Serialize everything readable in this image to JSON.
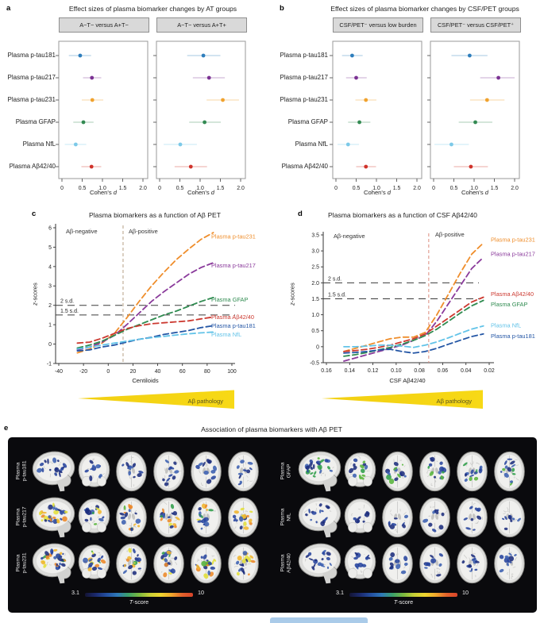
{
  "figure": {
    "panel_a": {
      "label": "a",
      "title": "Effect sizes of plasma biomarker changes by AT groups",
      "group_headers": [
        "A−T− versus A+T−",
        "A−T− versus A+T+"
      ],
      "xlabel_prefix": "Cohen's ",
      "xlabel_italic": "d"
    },
    "panel_b": {
      "label": "b",
      "title": "Effect sizes of plasma biomarker changes by CSF/PET groups",
      "group_headers": [
        "CSF/PET⁻ versus low burden",
        "CSF/PET⁻ versus CSF/PET⁺"
      ],
      "xlabel_prefix": "Cohen's ",
      "xlabel_italic": "d"
    },
    "panel_c": {
      "label": "c",
      "title": "Plasma biomarkers as a function of Aβ PET",
      "xlabel": "Centiloids",
      "ylabel_italic": "z",
      "ylabel_rest": "-scores",
      "footer": "Aβ pathology"
    },
    "panel_d": {
      "label": "d",
      "title": "Plasma biomarkers as a function of CSF Aβ42/40",
      "xlabel": "CSF Aβ42/40",
      "ylabel_italic": "z",
      "ylabel_rest": "-scores",
      "footer": "Aβ pathology"
    },
    "panel_e": {
      "label": "e",
      "title": "Association of plasma biomarkers with Aβ PET",
      "colorbar_min": "3.1",
      "colorbar_max": "10",
      "colorbar_italic": "T",
      "colorbar_rest": "-score"
    }
  },
  "biomarkers": [
    "Plasma p-tau181",
    "Plasma p-tau217",
    "Plasma p-tau231",
    "Plasma GFAP",
    "Plasma NfL",
    "Plasma Aβ42/40"
  ],
  "marker_colors": [
    "#2e7ebc",
    "#7b3293",
    "#f0a22e",
    "#338a52",
    "#7cc9e8",
    "#d0332b"
  ],
  "chart_data": [
    {
      "id": "a",
      "type": "scatter",
      "subtype": "forest-plot",
      "title": "Effect sizes of plasma biomarker changes by AT groups",
      "categories": [
        "Plasma p-tau181",
        "Plasma p-tau217",
        "Plasma p-tau231",
        "Plasma GFAP",
        "Plasma NfL",
        "Plasma Aβ42/40"
      ],
      "xlabel": "Cohen's d",
      "xlim": [
        0,
        2
      ],
      "xticks": [
        0,
        0.5,
        1.0,
        1.5,
        2.0
      ],
      "groups": [
        {
          "name": "A−T− versus A+T−",
          "d": [
            0.45,
            0.74,
            0.75,
            0.53,
            0.34,
            0.73
          ],
          "ci_low": [
            0.17,
            0.52,
            0.49,
            0.28,
            0.07,
            0.48
          ],
          "ci_high": [
            0.72,
            0.97,
            1.02,
            0.78,
            0.6,
            0.97
          ]
        },
        {
          "name": "A−T− versus A+T+",
          "d": [
            1.08,
            1.22,
            1.56,
            1.11,
            0.51,
            0.77
          ],
          "ci_low": [
            0.68,
            0.82,
            1.16,
            0.73,
            0.1,
            0.37
          ],
          "ci_high": [
            1.5,
            1.61,
            1.96,
            1.51,
            0.92,
            1.17
          ]
        }
      ]
    },
    {
      "id": "b",
      "type": "scatter",
      "subtype": "forest-plot",
      "title": "Effect sizes of plasma biomarker changes by CSF/PET groups",
      "categories": [
        "Plasma p-tau181",
        "Plasma p-tau217",
        "Plasma p-tau231",
        "Plasma GFAP",
        "Plasma NfL",
        "Plasma Aβ42/40"
      ],
      "xlabel": "Cohen's d",
      "xlim": [
        0,
        2
      ],
      "xticks": [
        0,
        0.5,
        1.0,
        1.5,
        2.0
      ],
      "groups": [
        {
          "name": "CSF/PET⁻ versus low burden",
          "d": [
            0.4,
            0.5,
            0.74,
            0.58,
            0.3,
            0.74
          ],
          "ci_low": [
            0.15,
            0.25,
            0.48,
            0.3,
            0.04,
            0.5
          ],
          "ci_high": [
            0.66,
            0.76,
            1.0,
            0.85,
            0.57,
            0.99
          ]
        },
        {
          "name": "CSF/PET⁻ versus CSF/PET⁺",
          "d": [
            0.89,
            1.6,
            1.32,
            1.03,
            0.44,
            0.92
          ],
          "ci_low": [
            0.44,
            1.15,
            0.9,
            0.62,
            0.02,
            0.5
          ],
          "ci_high": [
            1.33,
            2.0,
            1.75,
            1.45,
            0.87,
            1.34
          ]
        }
      ]
    },
    {
      "id": "c",
      "type": "line",
      "title": "Plasma biomarkers as a function of Aβ PET",
      "xlabel": "Centiloids",
      "ylabel": "z-scores",
      "xlim": [
        -45,
        103
      ],
      "ylim": [
        -1,
        6
      ],
      "xticks": [
        -40,
        -20,
        0,
        20,
        40,
        60,
        80,
        100
      ],
      "yticks": [
        -1,
        0,
        1,
        2,
        3,
        4,
        5,
        6
      ],
      "thresholds": [
        {
          "label": "2 s.d.",
          "y": 2
        },
        {
          "label": "1.5 s.d.",
          "y": 1.5
        }
      ],
      "divider_x": 12,
      "regions": [
        "Aβ-negative",
        "Aβ-positive"
      ],
      "footer": "Aβ pathology",
      "x": [
        -25,
        -15,
        -5,
        5,
        15,
        25,
        35,
        45,
        55,
        65,
        75,
        85
      ],
      "series": [
        {
          "name": "Plasma p-tau231",
          "color": "#ef8e2c",
          "label_z": 5.55,
          "y": [
            -0.45,
            -0.25,
            0.05,
            0.55,
            1.35,
            2.2,
            3.0,
            3.7,
            4.35,
            4.9,
            5.4,
            5.75
          ]
        },
        {
          "name": "Plasma p-tau217",
          "color": "#8a3a9b",
          "label_z": 4.05,
          "y": [
            -0.3,
            -0.15,
            0.1,
            0.45,
            1.0,
            1.6,
            2.2,
            2.7,
            3.15,
            3.6,
            3.95,
            4.2
          ]
        },
        {
          "name": "Plasma GFAP",
          "color": "#2f8b50",
          "label_z": 2.3,
          "y": [
            -0.2,
            -0.05,
            0.15,
            0.45,
            0.75,
            1.0,
            1.25,
            1.5,
            1.7,
            1.95,
            2.2,
            2.4
          ]
        },
        {
          "name": "Plasma Aβ42/40",
          "color": "#cc3930",
          "label_z": 1.4,
          "y": [
            0.05,
            0.1,
            0.3,
            0.55,
            0.8,
            0.95,
            1.05,
            1.1,
            1.15,
            1.2,
            1.3,
            1.4
          ]
        },
        {
          "name": "Plasma p-tau181",
          "color": "#2456a5",
          "label_z": 0.95,
          "y": [
            -0.35,
            -0.3,
            -0.15,
            -0.05,
            0.1,
            0.25,
            0.35,
            0.5,
            0.6,
            0.7,
            0.85,
            0.95
          ]
        },
        {
          "name": "Plasma NfL",
          "color": "#62c3e8",
          "label_z": 0.5,
          "y": [
            -0.25,
            -0.15,
            -0.05,
            0.05,
            0.15,
            0.25,
            0.33,
            0.4,
            0.47,
            0.53,
            0.58,
            0.62
          ]
        }
      ]
    },
    {
      "id": "d",
      "type": "line",
      "title": "Plasma biomarkers as a function of CSF Aβ42/40",
      "xlabel": "CSF Aβ42/40",
      "ylabel": "z-scores",
      "xlim": [
        0.16,
        0.02
      ],
      "x_reversed": true,
      "ylim": [
        -0.5,
        3.5
      ],
      "xticks": [
        0.16,
        0.14,
        0.12,
        0.1,
        0.08,
        0.06,
        0.04,
        0.02
      ],
      "yticks": [
        -0.5,
        0,
        0.5,
        1.0,
        1.5,
        2.0,
        2.5,
        3.0,
        3.5
      ],
      "thresholds": [
        {
          "label": "2 s.d.",
          "y": 2
        },
        {
          "label": "1.5 s.d.",
          "y": 1.5
        }
      ],
      "divider_x": 0.072,
      "regions": [
        "Aβ-negative",
        "Aβ-positive"
      ],
      "footer": "Aβ pathology",
      "x": [
        0.145,
        0.135,
        0.125,
        0.115,
        0.105,
        0.095,
        0.085,
        0.075,
        0.065,
        0.055,
        0.045,
        0.035,
        0.025
      ],
      "series": [
        {
          "name": "Plasma p-tau231",
          "color": "#ef8e2c",
          "label_z": 3.35,
          "y": [
            -0.15,
            -0.05,
            0.05,
            0.15,
            0.25,
            0.3,
            0.3,
            0.45,
            1.0,
            1.65,
            2.3,
            2.9,
            3.25
          ]
        },
        {
          "name": "Plasma p-tau217",
          "color": "#8a3a9b",
          "label_z": 2.9,
          "y": [
            -0.45,
            -0.35,
            -0.25,
            -0.15,
            -0.05,
            0.05,
            0.2,
            0.35,
            0.8,
            1.35,
            1.9,
            2.45,
            2.8
          ]
        },
        {
          "name": "Plasma Aβ42/40",
          "color": "#cc3930",
          "label_z": 1.65,
          "y": [
            -0.15,
            -0.12,
            -0.08,
            -0.02,
            0.05,
            0.15,
            0.25,
            0.4,
            0.65,
            0.9,
            1.15,
            1.4,
            1.55
          ]
        },
        {
          "name": "Plasma GFAP",
          "color": "#2f8b50",
          "label_z": 1.33,
          "y": [
            -0.3,
            -0.25,
            -0.18,
            -0.1,
            -0.02,
            0.08,
            0.2,
            0.35,
            0.55,
            0.8,
            1.05,
            1.28,
            1.45
          ]
        },
        {
          "name": "Plasma NfL",
          "color": "#62c3e8",
          "label_z": 0.67,
          "y": [
            0.0,
            0.0,
            0.02,
            0.05,
            0.05,
            0.02,
            -0.02,
            0.05,
            0.15,
            0.28,
            0.42,
            0.55,
            0.65
          ]
        },
        {
          "name": "Plasma p-tau181",
          "color": "#2456a5",
          "label_z": 0.33,
          "y": [
            -0.2,
            -0.18,
            -0.15,
            -0.1,
            -0.08,
            -0.15,
            -0.2,
            -0.15,
            -0.05,
            0.08,
            0.2,
            0.32,
            0.4
          ]
        }
      ]
    },
    {
      "id": "e",
      "type": "heatmap",
      "subtype": "brain-t-statistic-maps",
      "title": "Association of plasma biomarkers with Aβ PET",
      "slice_types": [
        "sagittal",
        "coronal",
        "axial",
        "axial",
        "axial",
        "axial"
      ],
      "colorbar": {
        "min": "3.1",
        "max": "10",
        "label": "T-score"
      },
      "blocks": [
        {
          "rows": [
            {
              "label": "Plasma p-tau181",
              "heat": 0.35
            },
            {
              "label": "Plasma p-tau217",
              "heat": 0.85
            },
            {
              "label": "Plasma p-tau231",
              "heat": 1.0
            }
          ]
        },
        {
          "rows": [
            {
              "label": "Plasma GFAP",
              "heat": 0.6
            },
            {
              "label": "Plasma NfL",
              "heat": 0.2
            },
            {
              "label": "Plasma Aβ42/40",
              "heat": 0.4
            }
          ]
        }
      ]
    }
  ]
}
